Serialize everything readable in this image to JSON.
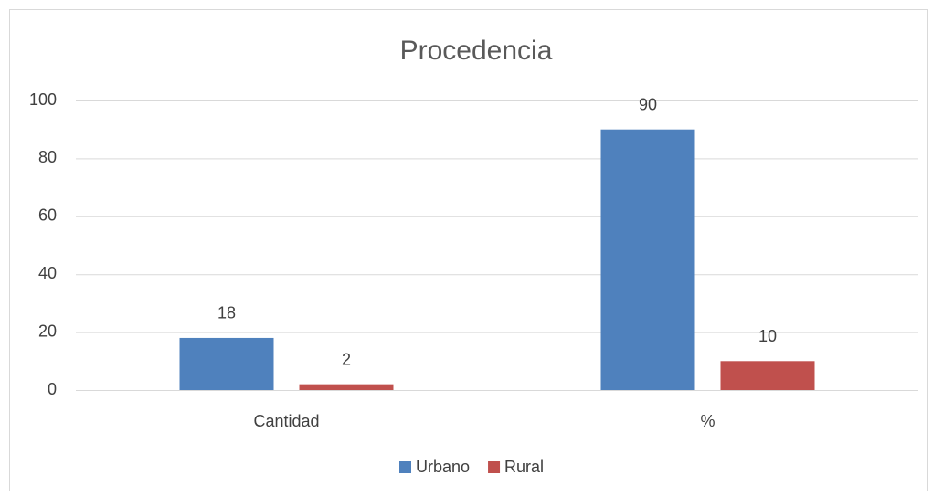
{
  "chart_data": {
    "type": "bar",
    "title": "Procedencia",
    "categories": [
      "Cantidad",
      "%"
    ],
    "series": [
      {
        "name": "Urbano",
        "color": "#4f81bd",
        "values": [
          18,
          90
        ]
      },
      {
        "name": "Rural",
        "color": "#c0504d",
        "values": [
          2,
          10
        ]
      }
    ],
    "ylim": [
      0,
      100
    ],
    "yticks": [
      0,
      20,
      40,
      60,
      80,
      100
    ],
    "grid": true,
    "legend": "bottom"
  }
}
